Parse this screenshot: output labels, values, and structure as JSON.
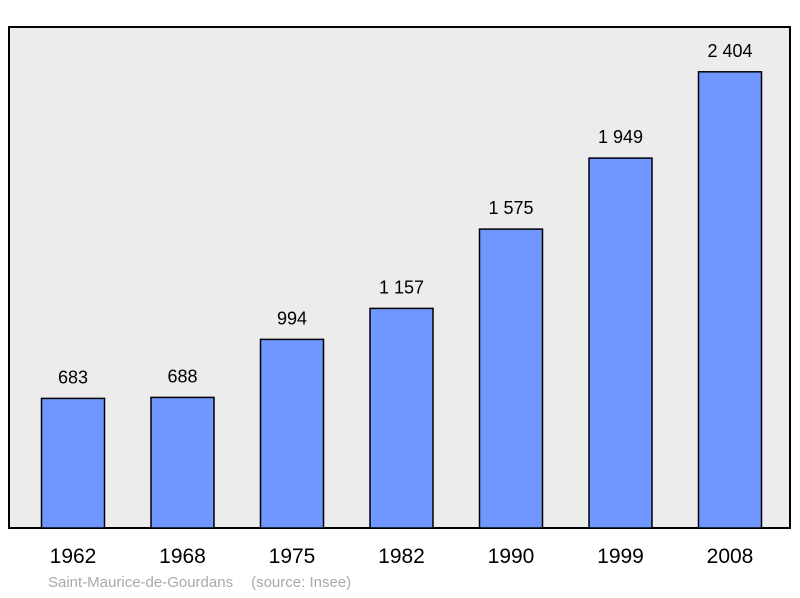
{
  "chart_data": {
    "type": "bar",
    "categories": [
      "1962",
      "1968",
      "1975",
      "1982",
      "1990",
      "1999",
      "2008"
    ],
    "values": [
      683,
      688,
      994,
      1157,
      1575,
      1949,
      2404
    ],
    "value_labels": [
      "683",
      "688",
      "994",
      "1 157",
      "1 575",
      "1 949",
      "2 404"
    ],
    "title": "",
    "xlabel": "",
    "ylabel": "",
    "ylim": [
      0,
      2640
    ],
    "grid": false,
    "legend": "none"
  },
  "footer": {
    "place": "Saint-Maurice-de-Gourdans",
    "source": "(source: Insee)"
  },
  "colors": {
    "bar_fill": "#7097ff",
    "bar_stroke": "#000000",
    "plot_background": "#ececec",
    "label_text": "#000000",
    "footer_text": "#a9a9a9"
  }
}
